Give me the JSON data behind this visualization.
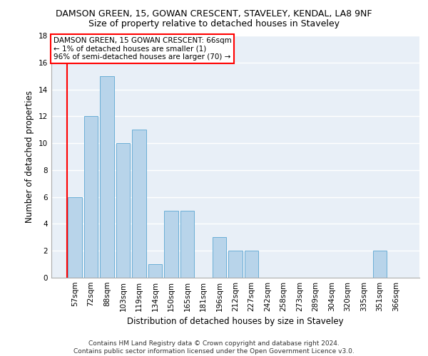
{
  "title1": "DAMSON GREEN, 15, GOWAN CRESCENT, STAVELEY, KENDAL, LA8 9NF",
  "title2": "Size of property relative to detached houses in Staveley",
  "xlabel": "Distribution of detached houses by size in Staveley",
  "ylabel": "Number of detached properties",
  "categories": [
    "57sqm",
    "72sqm",
    "88sqm",
    "103sqm",
    "119sqm",
    "134sqm",
    "150sqm",
    "165sqm",
    "181sqm",
    "196sqm",
    "212sqm",
    "227sqm",
    "242sqm",
    "258sqm",
    "273sqm",
    "289sqm",
    "304sqm",
    "320sqm",
    "335sqm",
    "351sqm",
    "366sqm"
  ],
  "values": [
    6,
    12,
    15,
    10,
    11,
    1,
    5,
    5,
    0,
    3,
    2,
    2,
    0,
    0,
    0,
    0,
    0,
    0,
    0,
    2,
    0
  ],
  "bar_color": "#b8d4ea",
  "bar_edge_color": "#6aaed6",
  "annotation_box_text": "DAMSON GREEN, 15 GOWAN CRESCENT: 66sqm\n← 1% of detached houses are smaller (1)\n96% of semi-detached houses are larger (70) →",
  "annotation_box_color": "white",
  "annotation_box_edge_color": "red",
  "vline_color": "red",
  "ylim": [
    0,
    18
  ],
  "yticks": [
    0,
    2,
    4,
    6,
    8,
    10,
    12,
    14,
    16,
    18
  ],
  "footer_text": "Contains HM Land Registry data © Crown copyright and database right 2024.\nContains public sector information licensed under the Open Government Licence v3.0.",
  "bg_color": "#e8eff7",
  "grid_color": "#ffffff",
  "title1_fontsize": 9,
  "title2_fontsize": 9,
  "annotation_fontsize": 7.5,
  "axis_label_fontsize": 8.5,
  "tick_fontsize": 7.5,
  "footer_fontsize": 6.5
}
